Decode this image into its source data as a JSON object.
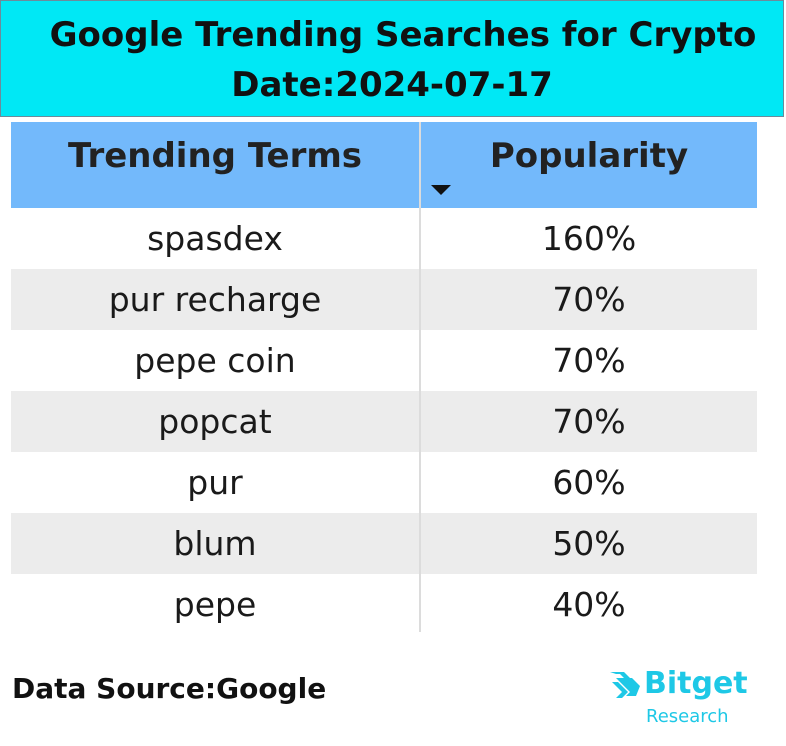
{
  "title": {
    "line1": "Google Trending Searches for Crypto",
    "line2": "Date:2024-07-17"
  },
  "table": {
    "headers": [
      "Trending Terms",
      "Popularity"
    ],
    "sort_indicator": "sort-descending-icon",
    "rows": [
      {
        "term": "spasdex",
        "popularity": "160%"
      },
      {
        "term": "pur recharge",
        "popularity": "70%"
      },
      {
        "term": "pepe coin",
        "popularity": "70%"
      },
      {
        "term": "popcat",
        "popularity": "70%"
      },
      {
        "term": "pur",
        "popularity": "60%"
      },
      {
        "term": "blum",
        "popularity": "50%"
      },
      {
        "term": "pepe",
        "popularity": "40%"
      }
    ]
  },
  "footer": {
    "source": "Data Source:Google",
    "brand_name": "Bitget",
    "brand_sub": "Research",
    "brand_logo_icon": "bitget-logo-icon"
  },
  "colors": {
    "banner": "#00e8f5",
    "header": "#73b9fb",
    "alt_row": "#ececec",
    "brand": "#1ec8e6"
  }
}
